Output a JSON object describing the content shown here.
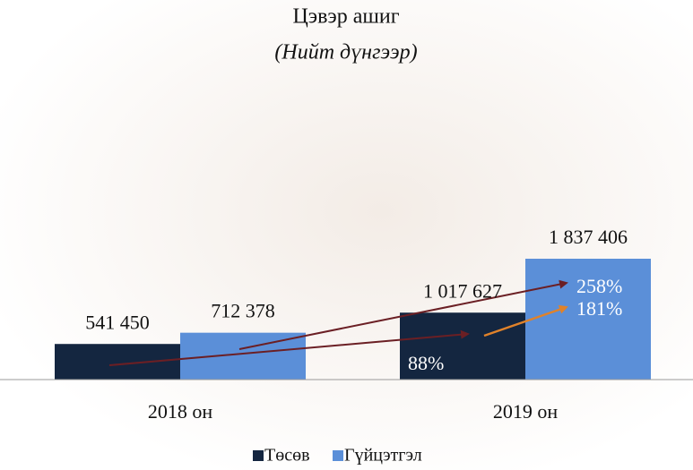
{
  "chart_data": {
    "type": "bar",
    "title": "Цэвэр ашиг",
    "subtitle": "(Нийт дүнгээр)",
    "categories": [
      "2018 он",
      "2019 он"
    ],
    "series": [
      {
        "name": "Төсөв",
        "color": "#142640",
        "values": [
          541450,
          1017627
        ],
        "value_labels": [
          "541 450",
          "1 017 627"
        ]
      },
      {
        "name": "Гүйцэтгэл",
        "color": "#5b8fd8",
        "values": [
          712378,
          1837406
        ],
        "value_labels": [
          "712 378",
          "1 837 406"
        ]
      }
    ],
    "annotations": [
      {
        "text": "88%"
      },
      {
        "text": "258%"
      },
      {
        "text": "181%"
      }
    ],
    "legend": "bottom"
  }
}
